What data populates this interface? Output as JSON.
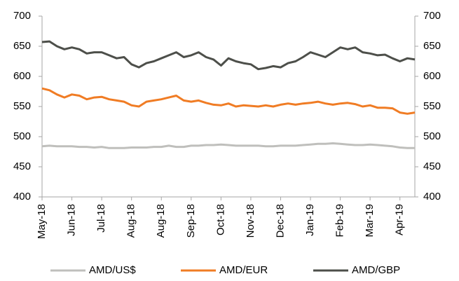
{
  "chart_data": {
    "type": "line",
    "categories": [
      "May-18",
      null,
      null,
      null,
      "Jun-18",
      null,
      null,
      null,
      "Jul-18",
      null,
      null,
      null,
      "Aug-18",
      null,
      null,
      null,
      "Aug-18",
      null,
      null,
      null,
      "Sep-18",
      null,
      null,
      null,
      "Oct-18",
      null,
      null,
      null,
      "Nov-18",
      null,
      null,
      null,
      "Dec-18",
      null,
      null,
      null,
      "Jan-19",
      null,
      null,
      null,
      "Feb-19",
      null,
      null,
      null,
      "Mar-19",
      null,
      null,
      null,
      "Apr-19",
      null,
      null
    ],
    "series": [
      {
        "name": "AMD/US$",
        "color": "#bfbfbc",
        "values": [
          484,
          485,
          484,
          484,
          484,
          483,
          483,
          482,
          483,
          481,
          481,
          481,
          482,
          482,
          482,
          483,
          483,
          485,
          483,
          483,
          485,
          485,
          486,
          486,
          487,
          486,
          485,
          485,
          485,
          485,
          484,
          484,
          485,
          485,
          485,
          486,
          487,
          488,
          488,
          489,
          488,
          487,
          486,
          486,
          487,
          486,
          485,
          484,
          482,
          481,
          481
        ]
      },
      {
        "name": "AMD/EUR",
        "color": "#f07c24",
        "values": [
          580,
          577,
          570,
          565,
          570,
          568,
          562,
          565,
          566,
          562,
          560,
          558,
          552,
          550,
          558,
          560,
          562,
          565,
          568,
          560,
          558,
          560,
          556,
          553,
          552,
          555,
          550,
          552,
          551,
          550,
          552,
          550,
          553,
          555,
          553,
          555,
          556,
          558,
          555,
          553,
          555,
          556,
          554,
          550,
          552,
          548,
          548,
          547,
          540,
          538,
          540
        ]
      },
      {
        "name": "AMD/GBP",
        "color": "#4d4f4a",
        "values": [
          657,
          658,
          650,
          645,
          648,
          645,
          638,
          640,
          640,
          635,
          630,
          632,
          620,
          615,
          622,
          625,
          630,
          635,
          640,
          632,
          635,
          640,
          632,
          628,
          618,
          630,
          625,
          622,
          620,
          612,
          614,
          617,
          615,
          622,
          625,
          632,
          640,
          636,
          632,
          640,
          648,
          645,
          648,
          640,
          638,
          635,
          636,
          630,
          625,
          630,
          628
        ]
      }
    ],
    "ylim": [
      400,
      700
    ],
    "yticks": [
      400,
      450,
      500,
      550,
      600,
      650,
      700
    ],
    "y2lim": [
      400,
      700
    ],
    "y2ticks": [
      400,
      450,
      500,
      550,
      600,
      650,
      700
    ],
    "legend": "bottom"
  }
}
